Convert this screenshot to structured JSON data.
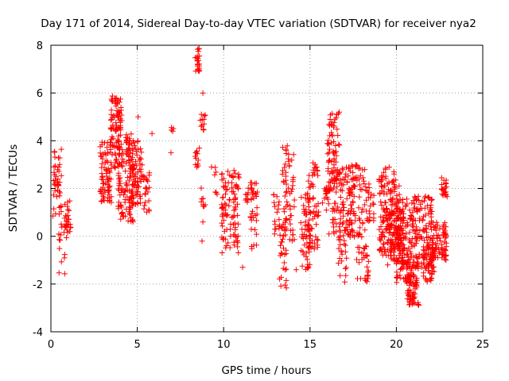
{
  "chart_data": {
    "type": "scatter",
    "title": "Day 171 of 2014, Sidereal Day-to-day VTEC variation (SDTVAR) for receiver nya2",
    "xlabel": "GPS time / hours",
    "ylabel": "SDTVAR / TECUs",
    "xlim": [
      0,
      25
    ],
    "ylim": [
      -4,
      8
    ],
    "xticks": [
      "0",
      "5",
      "10",
      "15",
      "20",
      "25"
    ],
    "yticks": [
      "-4",
      "-2",
      "0",
      "2",
      "4",
      "6",
      "8"
    ],
    "grid": true,
    "marker": "+",
    "color": "#ff0000",
    "clusters": [
      {
        "x0": 0.15,
        "x1": 0.65,
        "lo": 0.9,
        "hi": 3.8,
        "n": 45
      },
      {
        "x0": 0.45,
        "x1": 0.85,
        "lo": -1.6,
        "hi": 0.6,
        "n": 12
      },
      {
        "x0": 0.75,
        "x1": 1.15,
        "lo": -0.1,
        "hi": 1.5,
        "n": 30
      },
      {
        "x0": 2.85,
        "x1": 3.5,
        "lo": 1.4,
        "hi": 4.0,
        "n": 80
      },
      {
        "x0": 3.45,
        "x1": 4.1,
        "lo": 2.8,
        "hi": 5.9,
        "n": 90
      },
      {
        "x0": 3.9,
        "x1": 4.8,
        "lo": 0.6,
        "hi": 4.3,
        "n": 120
      },
      {
        "x0": 4.5,
        "x1": 5.3,
        "lo": 1.3,
        "hi": 4.0,
        "n": 80
      },
      {
        "x0": 5.35,
        "x1": 5.7,
        "lo": 0.8,
        "hi": 2.7,
        "n": 22
      },
      {
        "x0": 6.9,
        "x1": 7.1,
        "lo": 4.2,
        "hi": 4.6,
        "n": 4
      },
      {
        "x0": 8.35,
        "x1": 8.6,
        "lo": 6.9,
        "hi": 7.9,
        "n": 22
      },
      {
        "x0": 8.35,
        "x1": 8.6,
        "lo": 2.8,
        "hi": 3.7,
        "n": 12
      },
      {
        "x0": 8.65,
        "x1": 8.95,
        "lo": 4.3,
        "hi": 5.3,
        "n": 12
      },
      {
        "x0": 8.7,
        "x1": 8.95,
        "lo": 1.2,
        "hi": 2.2,
        "n": 8
      },
      {
        "x0": 9.45,
        "x1": 9.65,
        "lo": 1.7,
        "hi": 2.9,
        "n": 6
      },
      {
        "x0": 9.85,
        "x1": 10.9,
        "lo": -0.7,
        "hi": 2.8,
        "n": 100
      },
      {
        "x0": 11.2,
        "x1": 11.5,
        "lo": 1.4,
        "hi": 2.1,
        "n": 10
      },
      {
        "x0": 11.55,
        "x1": 11.95,
        "lo": -0.6,
        "hi": 2.3,
        "n": 36
      },
      {
        "x0": 12.85,
        "x1": 13.3,
        "lo": -0.2,
        "hi": 1.8,
        "n": 16
      },
      {
        "x0": 13.2,
        "x1": 13.7,
        "lo": -2.2,
        "hi": 0.8,
        "n": 30
      },
      {
        "x0": 13.4,
        "x1": 14.1,
        "lo": -0.3,
        "hi": 3.8,
        "n": 60
      },
      {
        "x0": 14.45,
        "x1": 15.0,
        "lo": -1.6,
        "hi": 1.8,
        "n": 55
      },
      {
        "x0": 14.9,
        "x1": 15.5,
        "lo": -0.6,
        "hi": 3.2,
        "n": 60
      },
      {
        "x0": 15.7,
        "x1": 16.1,
        "lo": 0.8,
        "hi": 2.2,
        "n": 16
      },
      {
        "x0": 16.0,
        "x1": 16.7,
        "lo": 1.8,
        "hi": 5.2,
        "n": 75
      },
      {
        "x0": 16.3,
        "x1": 17.4,
        "lo": 0.0,
        "hi": 3.0,
        "n": 95
      },
      {
        "x0": 16.6,
        "x1": 17.2,
        "lo": -2.0,
        "hi": 0.3,
        "n": 26
      },
      {
        "x0": 17.3,
        "x1": 18.2,
        "lo": -0.1,
        "hi": 3.0,
        "n": 75
      },
      {
        "x0": 17.7,
        "x1": 18.4,
        "lo": -1.9,
        "hi": -0.3,
        "n": 30
      },
      {
        "x0": 18.2,
        "x1": 18.7,
        "lo": 0.6,
        "hi": 2.2,
        "n": 26
      },
      {
        "x0": 19.0,
        "x1": 20.2,
        "lo": -0.8,
        "hi": 2.9,
        "n": 150
      },
      {
        "x0": 19.4,
        "x1": 20.4,
        "lo": -1.2,
        "hi": 1.2,
        "n": 90
      },
      {
        "x0": 20.0,
        "x1": 21.0,
        "lo": -2.0,
        "hi": 1.6,
        "n": 140
      },
      {
        "x0": 20.6,
        "x1": 21.3,
        "lo": -2.9,
        "hi": -0.8,
        "n": 70
      },
      {
        "x0": 21.0,
        "x1": 22.1,
        "lo": -1.3,
        "hi": 1.7,
        "n": 120
      },
      {
        "x0": 21.5,
        "x1": 22.2,
        "lo": -1.9,
        "hi": -0.4,
        "n": 50
      },
      {
        "x0": 22.1,
        "x1": 22.9,
        "lo": -1.0,
        "hi": 0.6,
        "n": 70
      },
      {
        "x0": 22.55,
        "x1": 22.95,
        "lo": 1.5,
        "hi": 2.5,
        "n": 22
      }
    ],
    "outliers": [
      {
        "x": 0.12,
        "y": 0.85
      },
      {
        "x": 5.05,
        "y": 5.0
      },
      {
        "x": 5.85,
        "y": 4.3
      },
      {
        "x": 6.95,
        "y": 3.5
      },
      {
        "x": 8.8,
        "y": 6.0
      },
      {
        "x": 8.75,
        "y": -0.2
      },
      {
        "x": 8.8,
        "y": 0.6
      },
      {
        "x": 9.3,
        "y": 2.9
      },
      {
        "x": 11.1,
        "y": -1.3
      },
      {
        "x": 14.2,
        "y": -1.4
      },
      {
        "x": 16.1,
        "y": 0.1
      }
    ]
  }
}
